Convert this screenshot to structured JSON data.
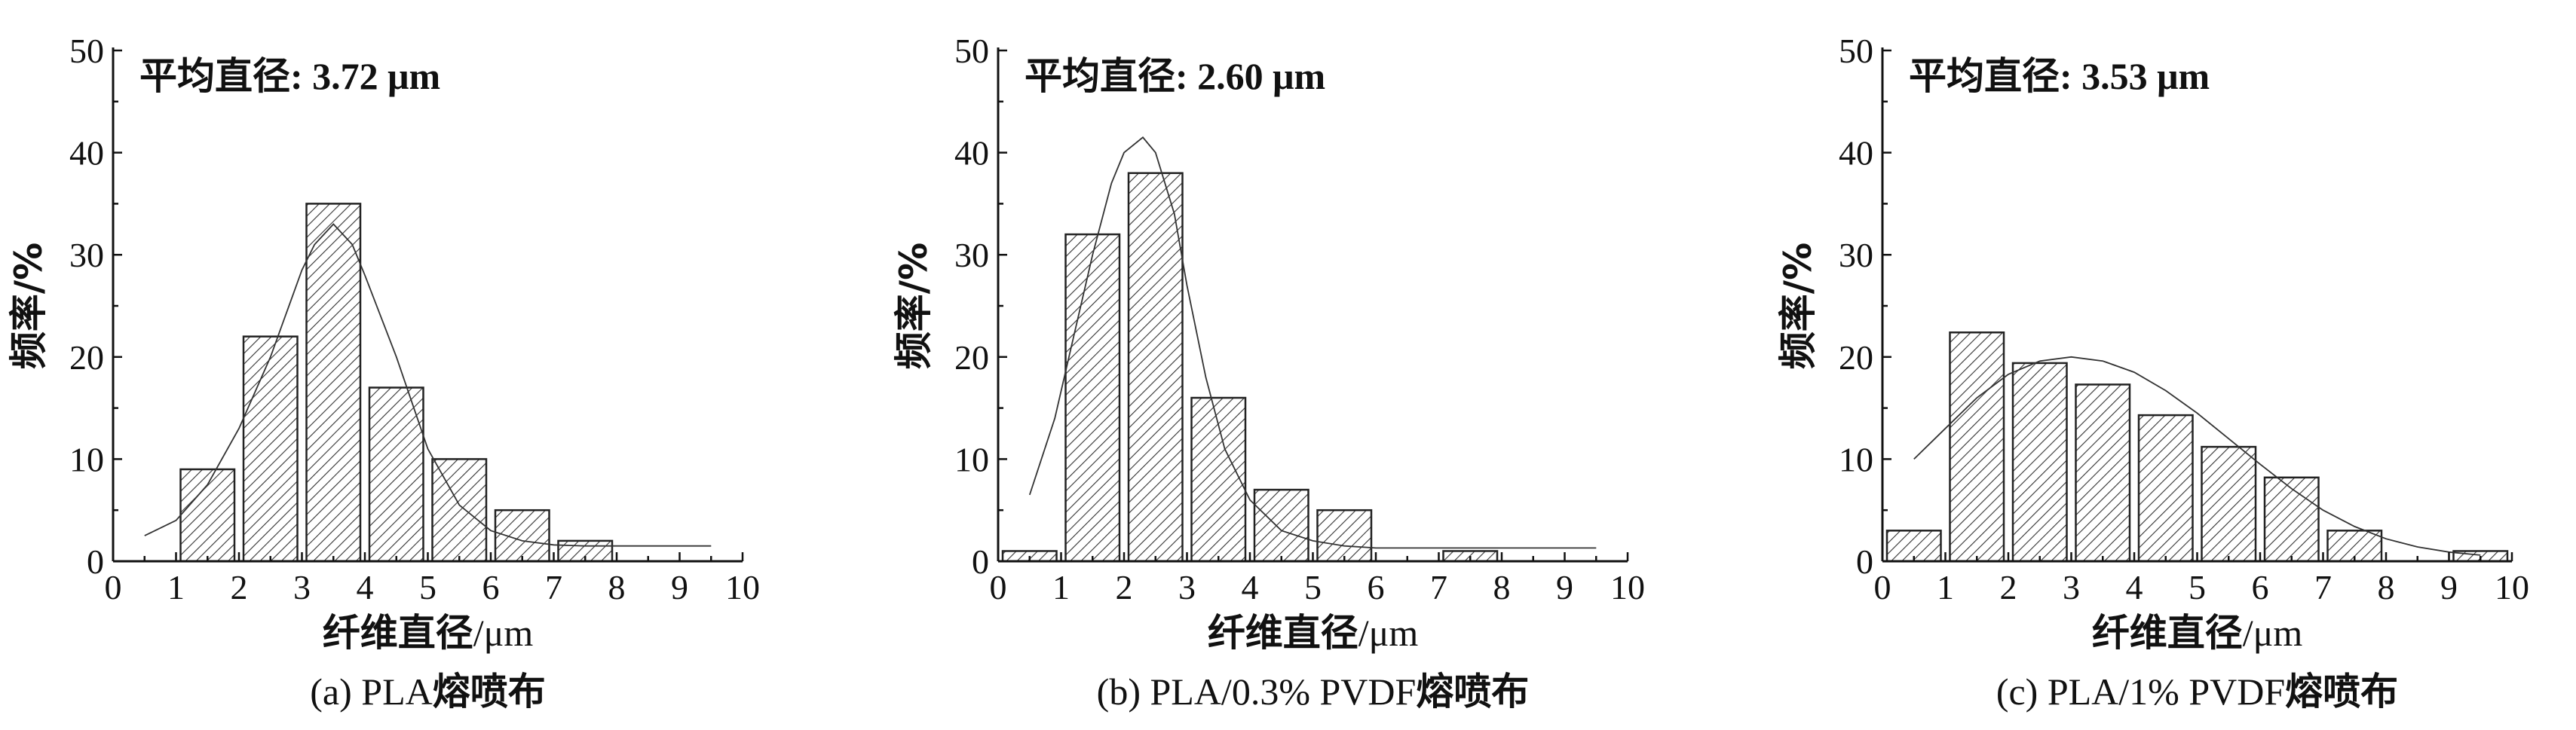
{
  "chart_data": [
    {
      "type": "bar",
      "subplot": "a",
      "caption": "(a) PLA",
      "caption_cn": "熔喷布",
      "annotation_label": "平均直径",
      "annotation_value": ": 3.72 μm",
      "xlabel": "纤维直径",
      "xlabel_unit": "/μm",
      "ylabel": "频率/%",
      "xlim": [
        0,
        10
      ],
      "ylim": [
        0,
        50
      ],
      "xticks": [
        "0",
        "1",
        "2",
        "3",
        "4",
        "5",
        "6",
        "7",
        "8",
        "9",
        "10"
      ],
      "yticks": [
        "0",
        "10",
        "20",
        "30",
        "40",
        "50"
      ],
      "bins": [
        [
          1,
          2
        ],
        [
          2,
          3
        ],
        [
          3,
          4
        ],
        [
          4,
          5
        ],
        [
          5,
          6
        ],
        [
          6,
          7
        ],
        [
          7,
          8
        ]
      ],
      "values": [
        9,
        22,
        35,
        17,
        10,
        5,
        2
      ],
      "fit_curve": {
        "x": [
          0.5,
          1,
          1.5,
          2,
          2.5,
          3,
          3.2,
          3.5,
          3.8,
          4,
          4.5,
          5,
          5.5,
          6,
          6.5,
          7,
          7.5,
          8,
          9.5
        ],
        "y": [
          2.5,
          4,
          7.5,
          13,
          20,
          28.5,
          31,
          33,
          31,
          28,
          20,
          11,
          5.5,
          3,
          2,
          1.6,
          1.5,
          1.5,
          1.5
        ]
      }
    },
    {
      "type": "bar",
      "subplot": "b",
      "caption": "(b) PLA/0.3% PVDF",
      "caption_cn": "熔喷布",
      "annotation_label": "平均直径",
      "annotation_value": ": 2.60 μm",
      "xlabel": "纤维直径",
      "xlabel_unit": "/μm",
      "ylabel": "频率/%",
      "xlim": [
        0,
        10
      ],
      "ylim": [
        0,
        50
      ],
      "xticks": [
        "0",
        "1",
        "2",
        "3",
        "4",
        "5",
        "6",
        "7",
        "8",
        "9",
        "10"
      ],
      "yticks": [
        "0",
        "10",
        "20",
        "30",
        "40",
        "50"
      ],
      "bins": [
        [
          0,
          1
        ],
        [
          1,
          2
        ],
        [
          2,
          3
        ],
        [
          3,
          4
        ],
        [
          4,
          5
        ],
        [
          5,
          6
        ],
        [
          7,
          8
        ]
      ],
      "values": [
        1,
        32,
        38,
        16,
        7,
        5,
        1
      ],
      "fit_curve": {
        "x": [
          0.5,
          0.9,
          1.2,
          1.5,
          1.8,
          2,
          2.3,
          2.5,
          2.8,
          3,
          3.3,
          3.6,
          4,
          4.5,
          5,
          5.5,
          6,
          9.5
        ],
        "y": [
          6.5,
          14,
          22,
          30,
          37,
          40,
          41.5,
          40,
          34,
          27,
          18,
          11,
          6,
          3,
          2,
          1.5,
          1.3,
          1.3
        ]
      }
    },
    {
      "type": "bar",
      "subplot": "c",
      "caption": "(c) PLA/1% PVDF",
      "caption_cn": "熔喷布",
      "annotation_label": "平均直径",
      "annotation_value": ": 3.53 μm",
      "xlabel": "纤维直径",
      "xlabel_unit": "/μm",
      "ylabel": "频率/%",
      "xlim": [
        0,
        10
      ],
      "ylim": [
        0,
        50
      ],
      "xticks": [
        "0",
        "1",
        "2",
        "3",
        "4",
        "5",
        "6",
        "7",
        "8",
        "9",
        "10"
      ],
      "yticks": [
        "0",
        "10",
        "20",
        "30",
        "40",
        "50"
      ],
      "bins": [
        [
          0,
          1
        ],
        [
          1,
          2
        ],
        [
          2,
          3
        ],
        [
          3,
          4
        ],
        [
          4,
          5
        ],
        [
          5,
          6
        ],
        [
          6,
          7
        ],
        [
          7,
          8
        ],
        [
          9,
          10
        ]
      ],
      "values": [
        3,
        22.4,
        19.4,
        17.3,
        14.3,
        11.2,
        8.2,
        3,
        1
      ],
      "fit_curve": {
        "x": [
          0.5,
          1,
          1.5,
          2,
          2.5,
          3,
          3.5,
          4,
          4.5,
          5,
          5.5,
          6,
          6.5,
          7,
          7.5,
          8,
          8.5,
          9,
          9.5
        ],
        "y": [
          10,
          13,
          16,
          18.3,
          19.6,
          20,
          19.6,
          18.5,
          16.7,
          14.5,
          12,
          9.5,
          7.1,
          5,
          3.4,
          2.2,
          1.4,
          0.9,
          0.6
        ]
      }
    }
  ]
}
